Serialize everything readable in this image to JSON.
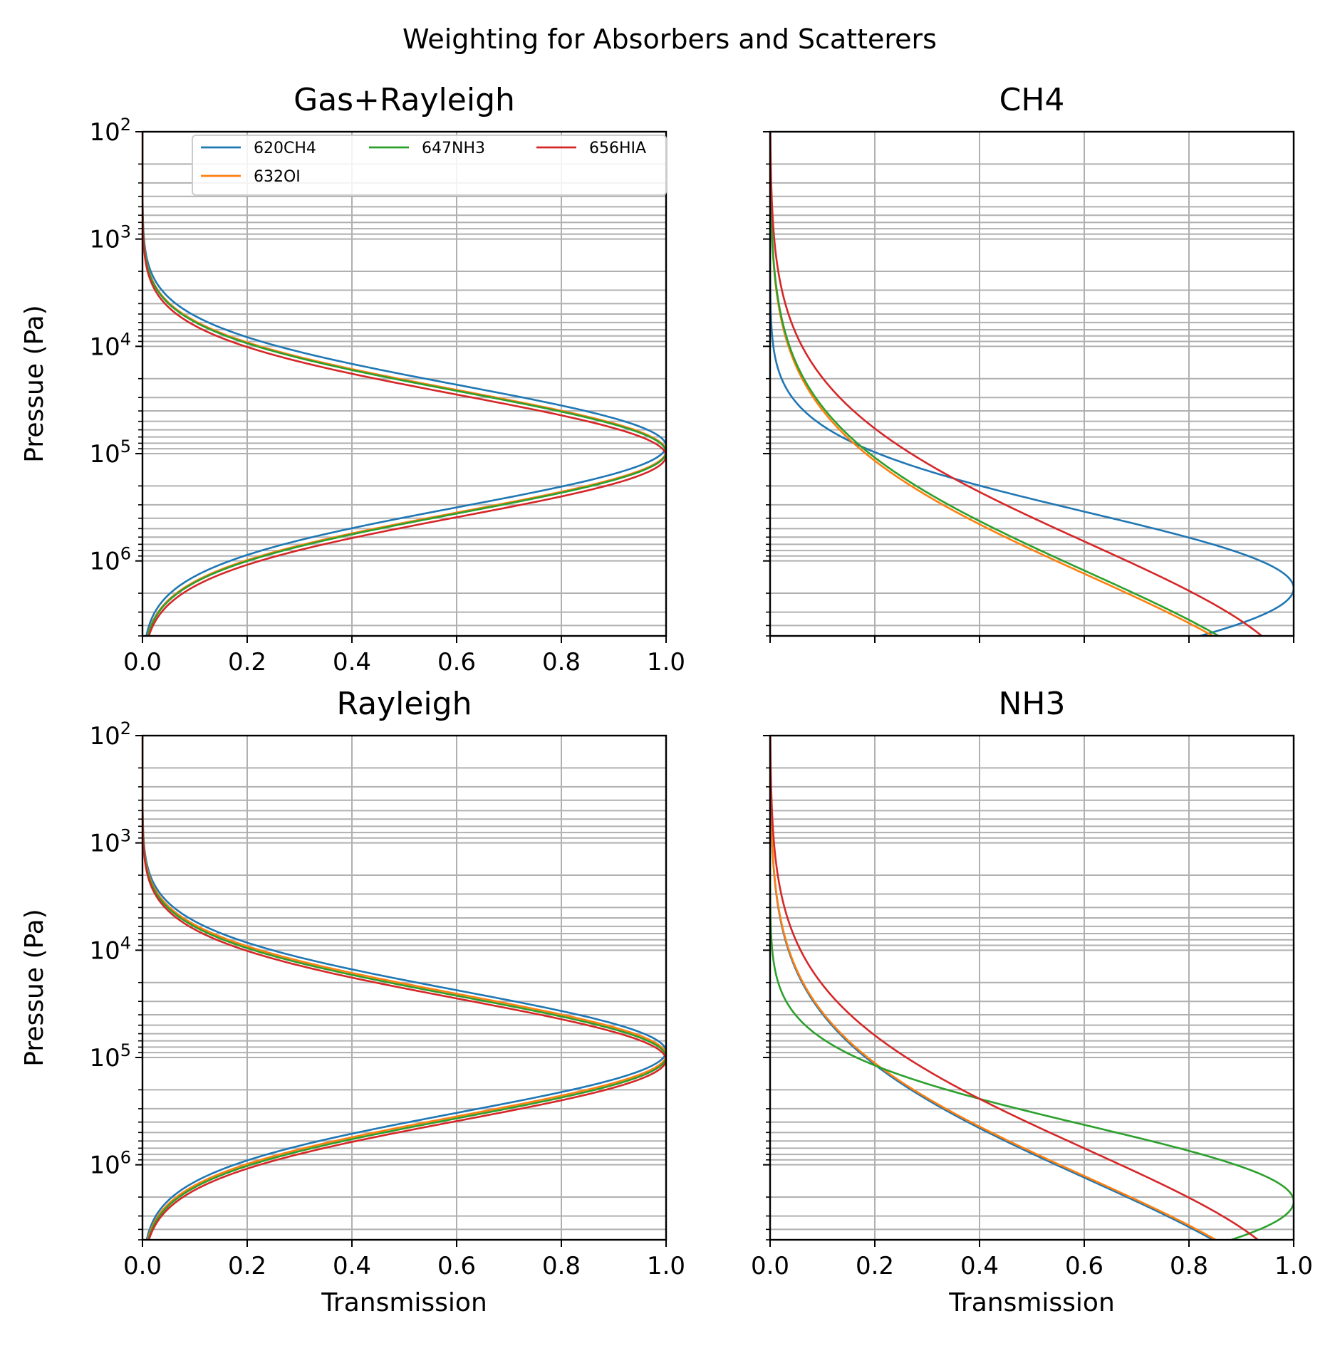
{
  "figure": {
    "suptitle": "Weighting for Absorbers and Scatterers"
  },
  "colors": {
    "620CH4": "#1f77b4",
    "632OI": "#ff7f0e",
    "647NH3": "#2ca02c",
    "656HIA": "#d62728",
    "grid": "#b0b0b0"
  },
  "legend": {
    "placement": "upper-right of top-left panel",
    "entries": [
      "620CH4",
      "632OI",
      "647NH3",
      "656HIA"
    ]
  },
  "chart_data": [
    {
      "type": "line",
      "title": "Gas+Rayleigh",
      "xlabel": "",
      "ylabel": "Pressue (Pa)",
      "xlim": [
        0.0,
        1.0
      ],
      "ylim": [
        100,
        5000000
      ],
      "yscale": "log",
      "y_inverted": true,
      "x_ticks": [
        "0.0",
        "0.2",
        "0.4",
        "0.6",
        "0.8",
        "1.0"
      ],
      "y_ticks": [
        "10^2",
        "10^3",
        "10^4",
        "10^5",
        "10^6"
      ],
      "grid": true,
      "series": [
        {
          "name": "620CH4",
          "peak_pressure": 85000,
          "width": 0.8,
          "peak_value": 1.0
        },
        {
          "name": "632OI",
          "peak_pressure": 95000,
          "width": 0.8,
          "peak_value": 1.0
        },
        {
          "name": "647NH3",
          "peak_pressure": 97000,
          "width": 0.8,
          "peak_value": 1.0
        },
        {
          "name": "656HIA",
          "peak_pressure": 105000,
          "width": 0.8,
          "peak_value": 1.0
        }
      ]
    },
    {
      "type": "line",
      "title": "CH4",
      "xlabel": "",
      "ylabel": "",
      "xlim": [
        0.0,
        1.0
      ],
      "ylim": [
        100,
        5000000
      ],
      "yscale": "log",
      "y_inverted": true,
      "x_ticks": [],
      "y_ticks": [],
      "grid": true,
      "series": [
        {
          "name": "620CH4",
          "peak_pressure": 1800000,
          "width": 1.0,
          "peak_value": 1.0
        },
        {
          "name": "632OI",
          "peak_pressure": 30000000,
          "width": 1.9,
          "peak_value": 1.0
        },
        {
          "name": "647NH3",
          "peak_pressure": 28000000,
          "width": 1.9,
          "peak_value": 1.0
        },
        {
          "name": "656HIA",
          "peak_pressure": 15000000,
          "width": 1.9,
          "peak_value": 1.0
        }
      ]
    },
    {
      "type": "line",
      "title": "Rayleigh",
      "xlabel": "Transmission",
      "ylabel": "Pressue (Pa)",
      "xlim": [
        0.0,
        1.0
      ],
      "ylim": [
        100,
        5000000
      ],
      "yscale": "log",
      "y_inverted": true,
      "x_ticks": [
        "0.0",
        "0.2",
        "0.4",
        "0.6",
        "0.8",
        "1.0"
      ],
      "y_ticks": [
        "10^2",
        "10^3",
        "10^4",
        "10^5",
        "10^6"
      ],
      "grid": true,
      "series": [
        {
          "name": "620CH4",
          "peak_pressure": 88000,
          "width": 0.8,
          "peak_value": 1.0
        },
        {
          "name": "632OI",
          "peak_pressure": 95000,
          "width": 0.8,
          "peak_value": 1.0
        },
        {
          "name": "647NH3",
          "peak_pressure": 99000,
          "width": 0.8,
          "peak_value": 1.0
        },
        {
          "name": "656HIA",
          "peak_pressure": 105000,
          "width": 0.8,
          "peak_value": 1.0
        }
      ]
    },
    {
      "type": "line",
      "title": "NH3",
      "xlabel": "Transmission",
      "ylabel": "",
      "xlim": [
        0.0,
        1.0
      ],
      "ylim": [
        100,
        5000000
      ],
      "yscale": "log",
      "y_inverted": true,
      "x_ticks": [
        "0.0",
        "0.2",
        "0.4",
        "0.6",
        "0.8",
        "1.0"
      ],
      "y_ticks": [],
      "grid": true,
      "series": [
        {
          "name": "620CH4",
          "peak_pressure": 30000000,
          "width": 1.9,
          "peak_value": 1.0
        },
        {
          "name": "632OI",
          "peak_pressure": 29000000,
          "width": 1.9,
          "peak_value": 1.0
        },
        {
          "name": "647NH3",
          "peak_pressure": 2200000,
          "width": 1.0,
          "peak_value": 1.0
        },
        {
          "name": "656HIA",
          "peak_pressure": 16000000,
          "width": 1.9,
          "peak_value": 1.0
        }
      ]
    }
  ]
}
